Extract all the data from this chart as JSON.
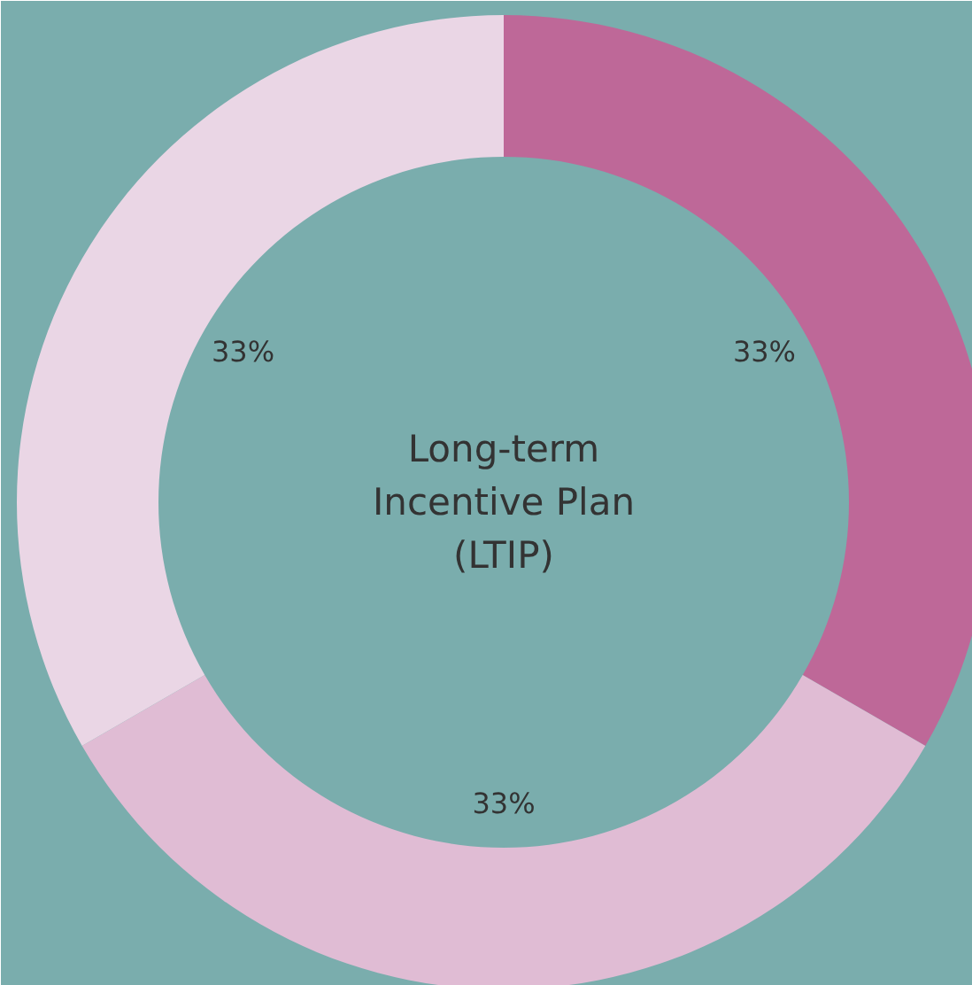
{
  "chart_data": {
    "type": "donut",
    "title": "Long-term\nIncentive Plan\n(LTIP)",
    "categories": [
      null,
      null,
      null
    ],
    "values": [
      33,
      33,
      33
    ],
    "colors": [
      "#be6898",
      "#e0bcd4",
      "#ead6e5"
    ],
    "value_labels": [
      "33%",
      "33%",
      "33%"
    ]
  }
}
